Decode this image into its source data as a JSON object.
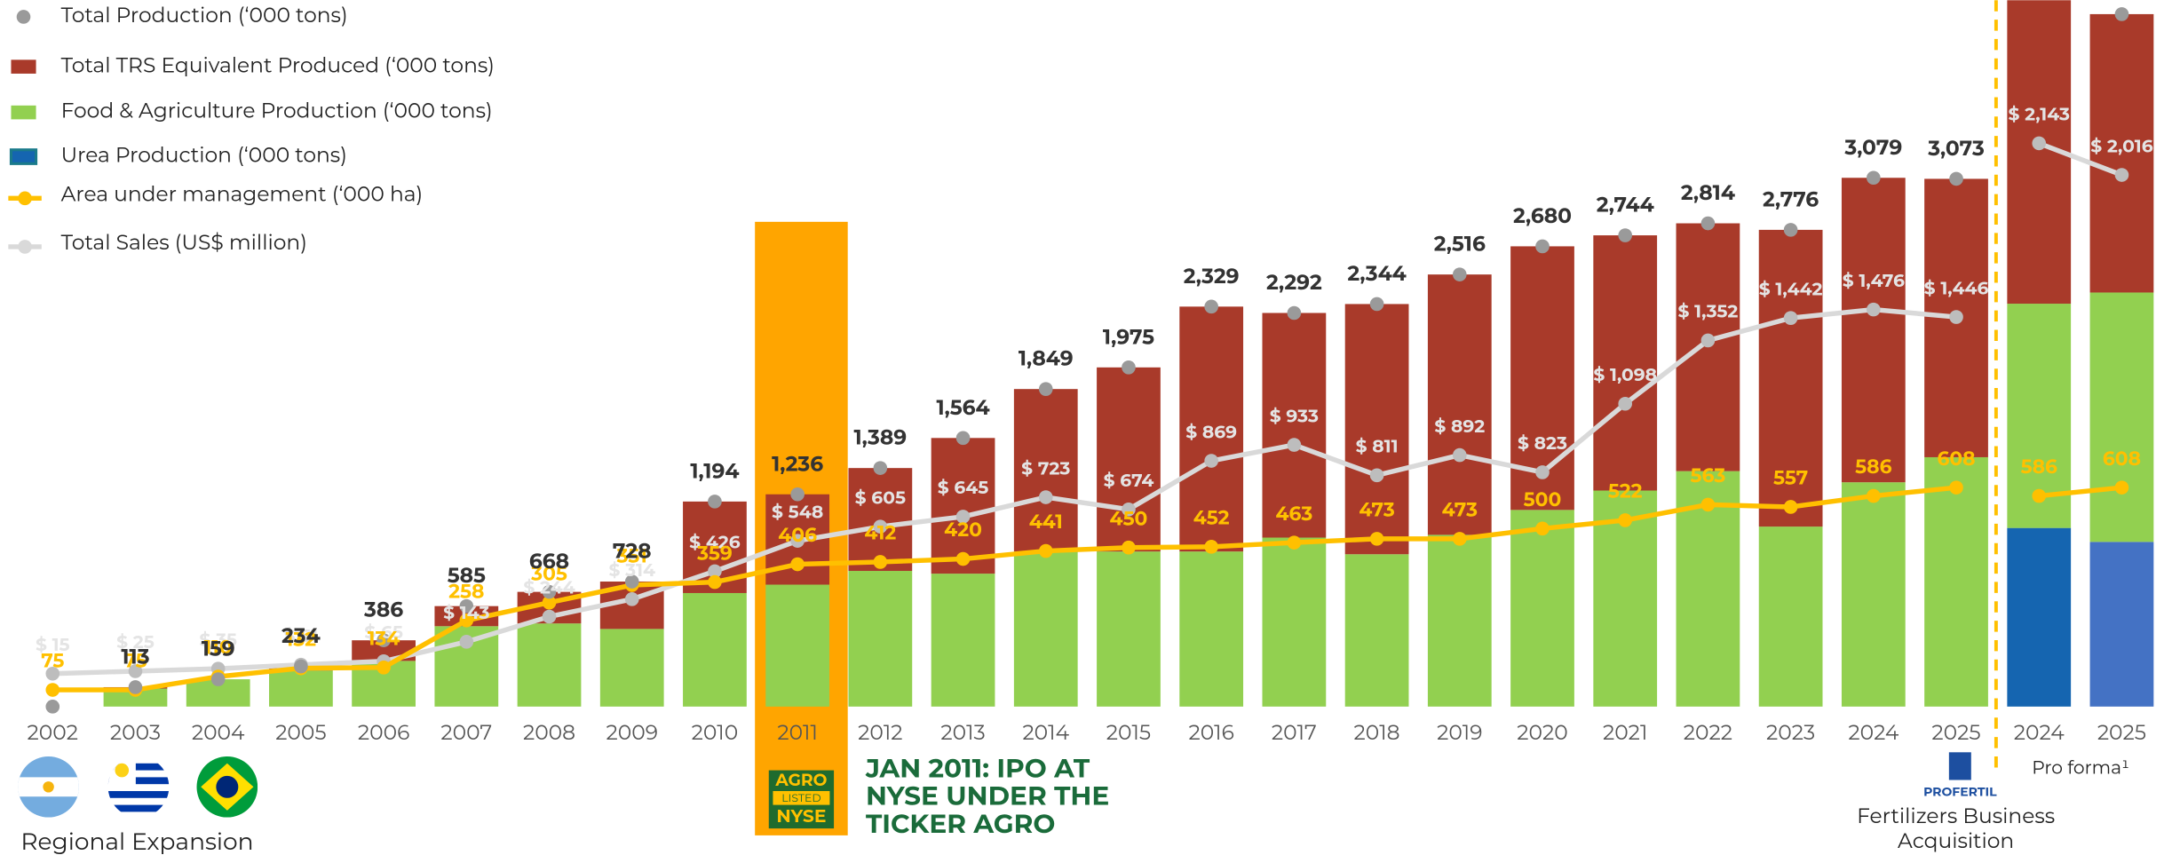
{
  "chart_data": {
    "type": "bar",
    "categories": [
      "2002",
      "2003",
      "2004",
      "2005",
      "2006",
      "2007",
      "2008",
      "2009",
      "2010",
      "2011",
      "2012",
      "2013",
      "2014",
      "2015",
      "2016",
      "2017",
      "2018",
      "2019",
      "2020",
      "2021",
      "2022",
      "2023",
      "2024",
      "2025"
    ],
    "ylim": [
      0,
      4113
    ],
    "y2lim": [
      31,
      1892
    ],
    "y3lim": [
      -117,
      2717
    ],
    "series": [
      {
        "name": "Total Production (‘000 tons)",
        "mark": "dot",
        "color": "#9a9a9a",
        "values": [
          0,
          113,
          159,
          234,
          386,
          585,
          668,
          728,
          1194,
          1236,
          1389,
          1564,
          1849,
          1975,
          2329,
          2292,
          2344,
          2516,
          2680,
          2744,
          2814,
          2776,
          3079,
          3073
        ],
        "value_labels": [
          null,
          "113",
          "159",
          "234",
          "386",
          "585",
          "668",
          "728",
          "1,194",
          "1,236",
          "1,389",
          "1,564",
          "1,849",
          "1,975",
          "2,329",
          "2,292",
          "2,344",
          "2,516",
          "2,680",
          "2,744",
          "2,814",
          "2,776",
          "3,079",
          "3,073"
        ]
      },
      {
        "name": "Total TRS Equivalent Produced (‘000 tons)",
        "mark": "bar",
        "color": "#a93a2a",
        "values": [
          0,
          8,
          0,
          24,
          120,
          117,
          184,
          276,
          533,
          526,
          599,
          790,
          946,
          1072,
          1426,
          1308,
          1457,
          1516,
          1535,
          1486,
          1443,
          1728,
          1773,
          1621
        ]
      },
      {
        "name": "Food & Agriculture Production (‘000 tons)",
        "mark": "bar",
        "color": "#92d050",
        "values": [
          0,
          105,
          159,
          210,
          266,
          468,
          484,
          452,
          661,
          710,
          790,
          774,
          903,
          903,
          903,
          984,
          887,
          1000,
          1145,
          1258,
          1371,
          1048,
          1306,
          1452
        ]
      },
      {
        "name": "Urea Production (‘000 tons)",
        "mark": "bar",
        "color": "#1565b0",
        "values": [
          null,
          null,
          null,
          null,
          null,
          null,
          null,
          null,
          null,
          null,
          null,
          null,
          null,
          null,
          null,
          null,
          null,
          null,
          null,
          null,
          null,
          null,
          null,
          null
        ]
      },
      {
        "name": "Area under management  (‘000 ha)",
        "mark": "line",
        "axis": "y2",
        "color": "#ffc000",
        "values": [
          75,
          75,
          110,
          132,
          134,
          258,
          305,
          351,
          359,
          406,
          412,
          420,
          441,
          450,
          452,
          463,
          473,
          473,
          500,
          522,
          563,
          557,
          586,
          608
        ]
      },
      {
        "name": "Total Sales (US$ million)",
        "mark": "line",
        "axis": "y3",
        "color": "#d9d9d9",
        "values": [
          15,
          25,
          35,
          51,
          65,
          143,
          244,
          314,
          426,
          548,
          605,
          645,
          723,
          674,
          869,
          933,
          811,
          892,
          823,
          1098,
          1352,
          1442,
          1476,
          1446
        ],
        "value_labels": [
          "$ 15",
          "$ 25",
          "$ 35",
          "$ 51",
          "$ 65",
          "$ 143",
          "$ 244",
          "$ 314",
          "$ 426",
          "$ 548",
          "$ 605",
          "$ 645",
          "$ 723",
          "$ 674",
          "$ 869",
          "$ 933",
          "$ 811",
          "$ 892",
          "$ 823",
          "$ 1,098",
          "$ 1,352",
          "$ 1,442",
          "$ 1,476",
          "$ 1,446"
        ]
      }
    ],
    "pro_forma": {
      "label": "Pro forma¹",
      "categories": [
        "2024",
        "2025"
      ],
      "series": [
        {
          "values": [
            null,
            4032
          ],
          "value_labels": [
            null,
            null
          ]
        },
        {
          "values": [
            1773,
            1621
          ]
        },
        {
          "values": [
            1306,
            1452
          ]
        },
        {
          "values": [
            1040,
            959
          ],
          "colors": [
            "#1565b0",
            "#4472c4"
          ]
        },
        {
          "values": [
            586,
            608
          ]
        },
        {
          "values": [
            2143,
            2016
          ],
          "value_labels": [
            "$ 2,143",
            "$ 2,016"
          ]
        }
      ]
    },
    "ipo_logo": [
      "AGRO",
      "LISTED",
      "NYSE"
    ],
    "ipo_note": [
      "JAN 2011: IPO AT",
      "NYSE UNDER THE",
      "TICKER AGRO"
    ],
    "region_note": "Regional Expansion",
    "acquisition_logo": "PROFERTIL",
    "acquisition_note": [
      "Fertilizers Business",
      "Acquisition"
    ]
  }
}
